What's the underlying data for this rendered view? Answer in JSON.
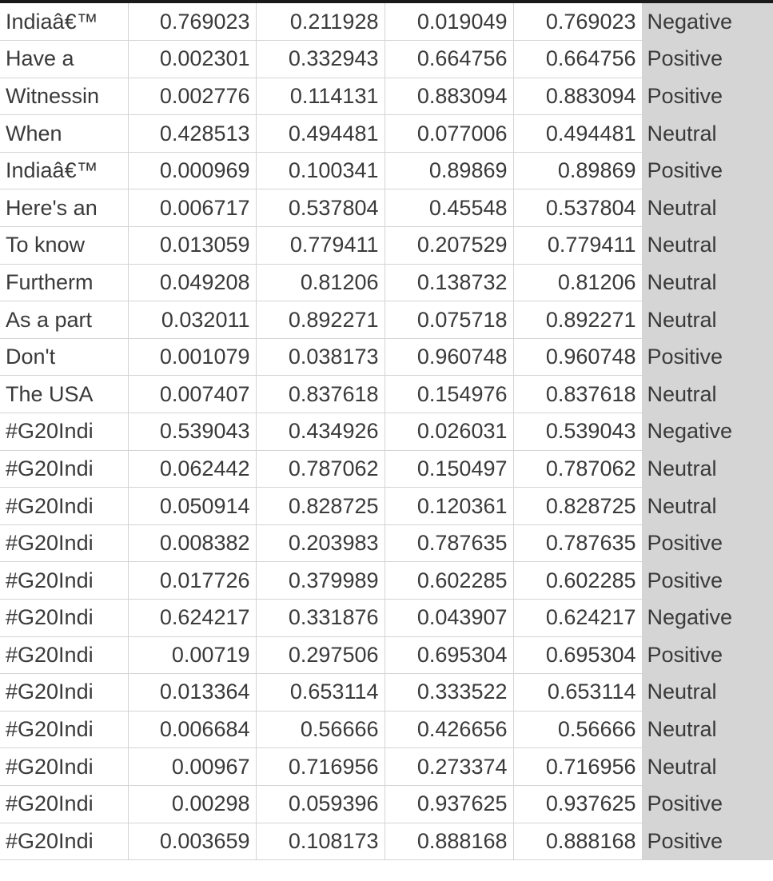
{
  "sheet": {
    "rows": [
      {
        "text": "Indiaâ€™",
        "neg": "0.769023",
        "neu": "0.211928",
        "pos": "0.019049",
        "max": "0.769023",
        "label": "Negative"
      },
      {
        "text": "Have a",
        "neg": "0.002301",
        "neu": "0.332943",
        "pos": "0.664756",
        "max": "0.664756",
        "label": "Positive"
      },
      {
        "text": "Witnessin",
        "neg": "0.002776",
        "neu": "0.114131",
        "pos": "0.883094",
        "max": "0.883094",
        "label": "Positive"
      },
      {
        "text": "When",
        "neg": "0.428513",
        "neu": "0.494481",
        "pos": "0.077006",
        "max": "0.494481",
        "label": "Neutral"
      },
      {
        "text": "Indiaâ€™",
        "neg": "0.000969",
        "neu": "0.100341",
        "pos": "0.89869",
        "max": "0.89869",
        "label": "Positive"
      },
      {
        "text": "Here's an",
        "neg": "0.006717",
        "neu": "0.537804",
        "pos": "0.45548",
        "max": "0.537804",
        "label": "Neutral"
      },
      {
        "text": "To know",
        "neg": "0.013059",
        "neu": "0.779411",
        "pos": "0.207529",
        "max": "0.779411",
        "label": "Neutral"
      },
      {
        "text": "Furtherm",
        "neg": "0.049208",
        "neu": "0.81206",
        "pos": "0.138732",
        "max": "0.81206",
        "label": "Neutral"
      },
      {
        "text": "As a part",
        "neg": "0.032011",
        "neu": "0.892271",
        "pos": "0.075718",
        "max": "0.892271",
        "label": "Neutral"
      },
      {
        "text": "Don't",
        "neg": "0.001079",
        "neu": "0.038173",
        "pos": "0.960748",
        "max": "0.960748",
        "label": "Positive"
      },
      {
        "text": "The USA",
        "neg": "0.007407",
        "neu": "0.837618",
        "pos": "0.154976",
        "max": "0.837618",
        "label": "Neutral"
      },
      {
        "text": "#G20Indi",
        "neg": "0.539043",
        "neu": "0.434926",
        "pos": "0.026031",
        "max": "0.539043",
        "label": "Negative"
      },
      {
        "text": "#G20Indi",
        "neg": "0.062442",
        "neu": "0.787062",
        "pos": "0.150497",
        "max": "0.787062",
        "label": "Neutral"
      },
      {
        "text": "#G20Indi",
        "neg": "0.050914",
        "neu": "0.828725",
        "pos": "0.120361",
        "max": "0.828725",
        "label": "Neutral"
      },
      {
        "text": "#G20Indi",
        "neg": "0.008382",
        "neu": "0.203983",
        "pos": "0.787635",
        "max": "0.787635",
        "label": "Positive"
      },
      {
        "text": "#G20Indi",
        "neg": "0.017726",
        "neu": "0.379989",
        "pos": "0.602285",
        "max": "0.602285",
        "label": "Positive"
      },
      {
        "text": "#G20Indi",
        "neg": "0.624217",
        "neu": "0.331876",
        "pos": "0.043907",
        "max": "0.624217",
        "label": "Negative"
      },
      {
        "text": "#G20Indi",
        "neg": "0.00719",
        "neu": "0.297506",
        "pos": "0.695304",
        "max": "0.695304",
        "label": "Positive"
      },
      {
        "text": "#G20Indi",
        "neg": "0.013364",
        "neu": "0.653114",
        "pos": "0.333522",
        "max": "0.653114",
        "label": "Neutral"
      },
      {
        "text": "#G20Indi",
        "neg": "0.006684",
        "neu": "0.56666",
        "pos": "0.426656",
        "max": "0.56666",
        "label": "Neutral"
      },
      {
        "text": "#G20Indi",
        "neg": "0.00967",
        "neu": "0.716956",
        "pos": "0.273374",
        "max": "0.716956",
        "label": "Neutral"
      },
      {
        "text": "#G20Indi",
        "neg": "0.00298",
        "neu": "0.059396",
        "pos": "0.937625",
        "max": "0.937625",
        "label": "Positive"
      },
      {
        "text": "#G20Indi",
        "neg": "0.003659",
        "neu": "0.108173",
        "pos": "0.888168",
        "max": "0.888168",
        "label": "Positive"
      }
    ]
  },
  "colors": {
    "selected_column_fill": "#d5d5d5",
    "gridline": "#d4d4d4",
    "text": "#3a3a3a"
  }
}
